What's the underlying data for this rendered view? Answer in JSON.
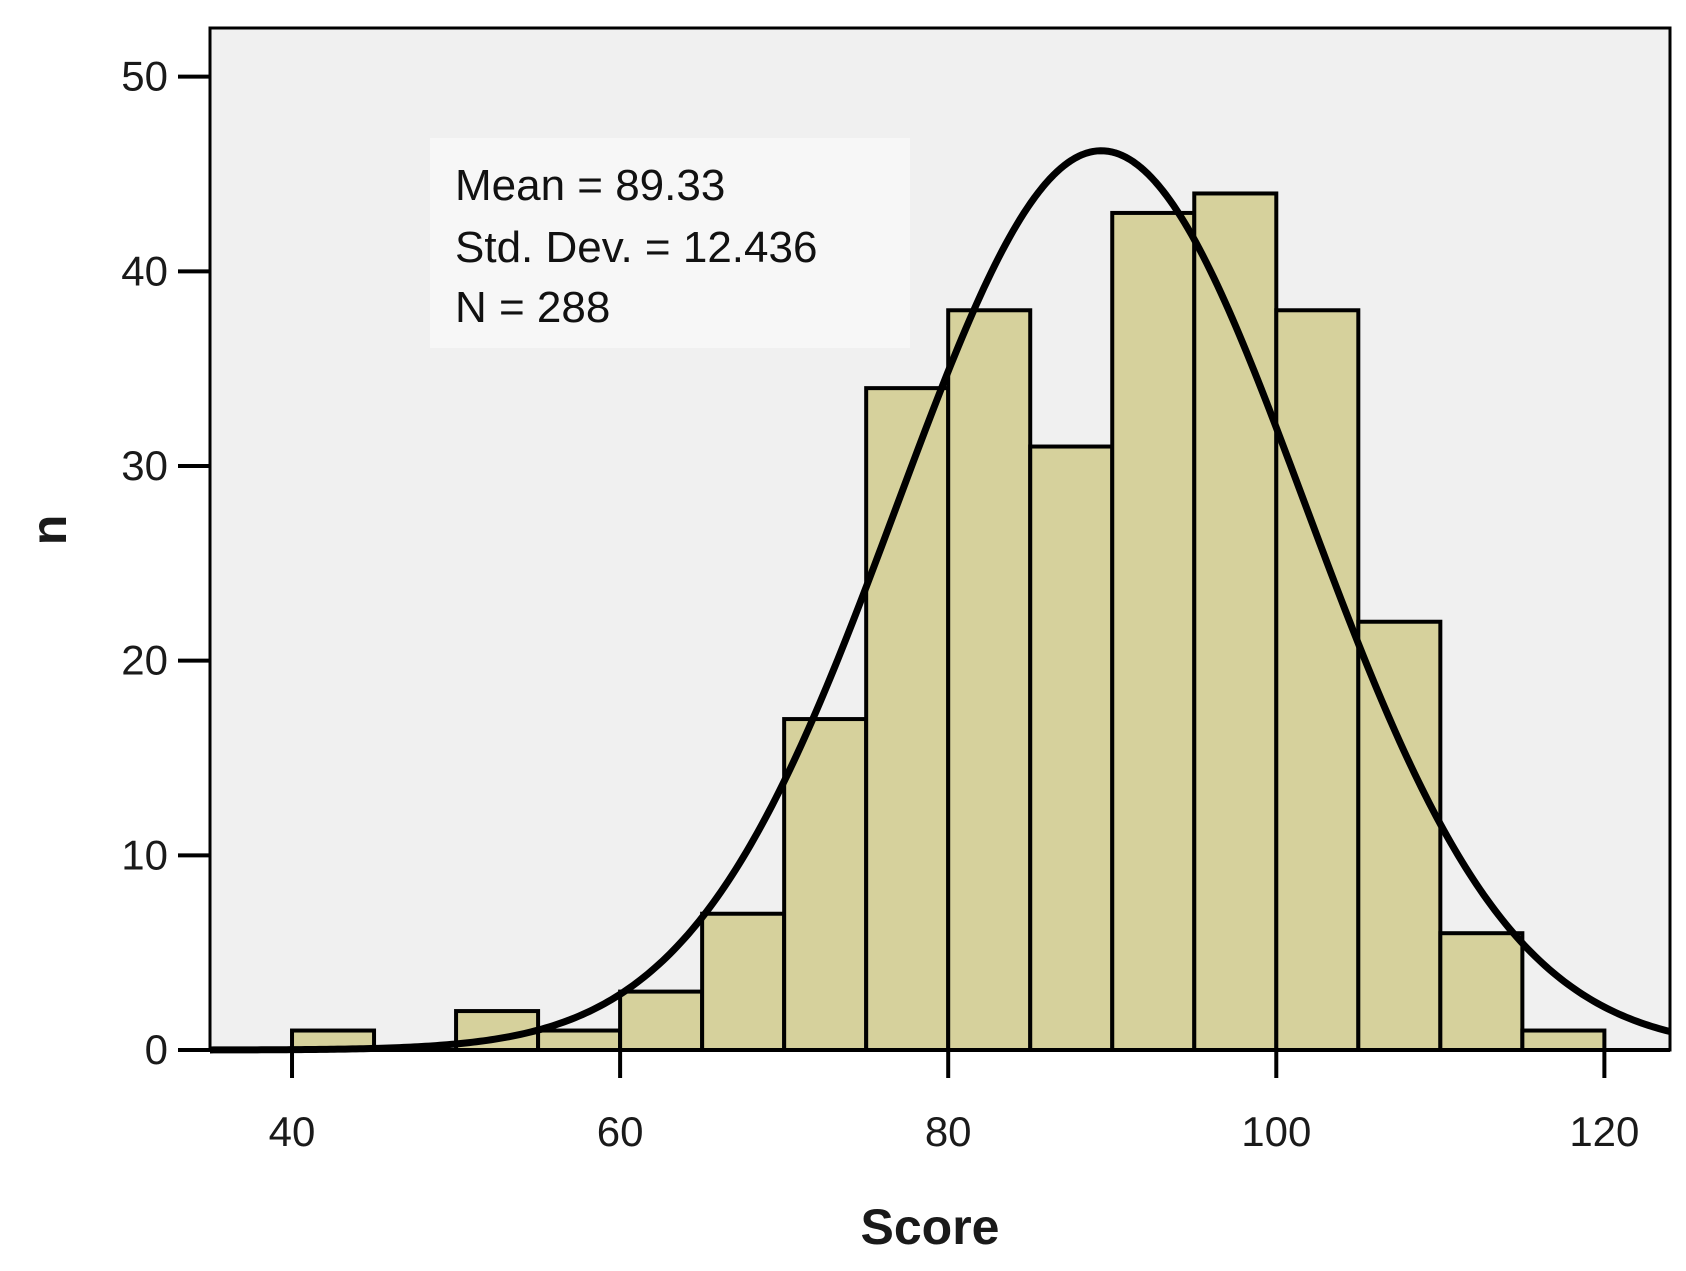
{
  "chart_data": {
    "type": "bar",
    "subtype": "histogram",
    "xlabel": "Score",
    "ylabel": "n",
    "xlim": [
      35,
      124
    ],
    "ylim": [
      0,
      52.5
    ],
    "xticks": [
      40,
      60,
      80,
      100,
      120
    ],
    "yticks": [
      0,
      10,
      20,
      30,
      40,
      50
    ],
    "bin_width": 5,
    "bins": [
      {
        "start": 40,
        "end": 45,
        "count": 1
      },
      {
        "start": 45,
        "end": 50,
        "count": 0
      },
      {
        "start": 50,
        "end": 55,
        "count": 2
      },
      {
        "start": 55,
        "end": 60,
        "count": 1
      },
      {
        "start": 60,
        "end": 65,
        "count": 3
      },
      {
        "start": 65,
        "end": 70,
        "count": 7
      },
      {
        "start": 70,
        "end": 75,
        "count": 17
      },
      {
        "start": 75,
        "end": 80,
        "count": 34
      },
      {
        "start": 80,
        "end": 85,
        "count": 38
      },
      {
        "start": 85,
        "end": 90,
        "count": 31
      },
      {
        "start": 90,
        "end": 95,
        "count": 43
      },
      {
        "start": 95,
        "end": 100,
        "count": 44
      },
      {
        "start": 100,
        "end": 105,
        "count": 38
      },
      {
        "start": 105,
        "end": 110,
        "count": 22
      },
      {
        "start": 110,
        "end": 115,
        "count": 6
      },
      {
        "start": 115,
        "end": 120,
        "count": 1
      }
    ],
    "normal_curve": {
      "mean": 89.33,
      "sd": 12.436,
      "n": 288
    },
    "stats_lines": [
      "Mean = 89.33",
      "Std. Dev. = 12.436",
      "N = 288"
    ],
    "grid": false,
    "colors": {
      "plot_background": "#f0f0f0",
      "bar_fill": "#d6d19c",
      "bar_edge": "#000000",
      "curve": "#000000",
      "stats_box": "#f7f7f7"
    }
  }
}
